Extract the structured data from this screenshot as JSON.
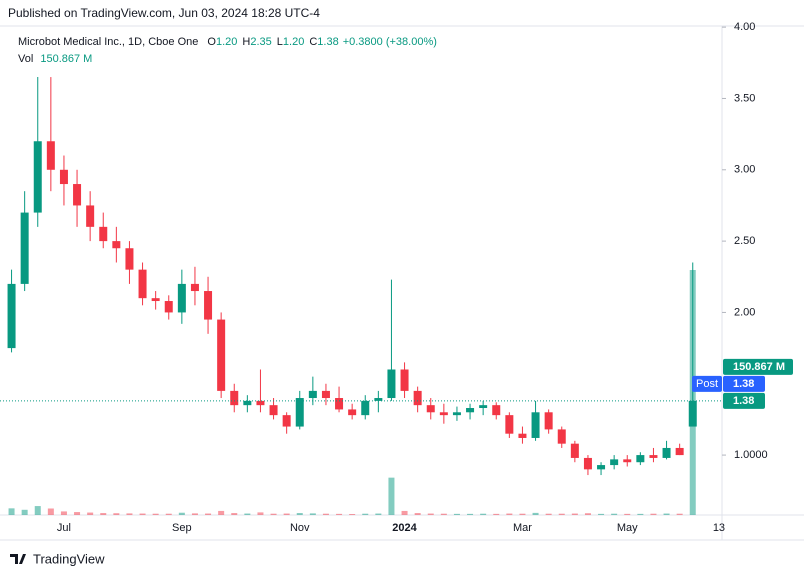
{
  "header": {
    "published": "Published on TradingView.com, Jun 03, 2024 18:28 UTC-4"
  },
  "chart_data": {
    "type": "candlestick",
    "title": "Microbot Medical Inc., 1D, Cboe One",
    "ohlc_legend": [
      {
        "key": "O",
        "value": "1.20"
      },
      {
        "key": "H",
        "value": "2.35"
      },
      {
        "key": "L",
        "value": "1.20"
      },
      {
        "key": "C",
        "value": "1.38"
      }
    ],
    "change": "+0.3800 (+38.00%)",
    "volume_label": "Vol",
    "volume_value": "150.867 M",
    "categories": [
      null,
      null,
      null,
      null,
      "Jul",
      null,
      null,
      null,
      null,
      null,
      null,
      null,
      null,
      "Sep",
      null,
      null,
      null,
      null,
      null,
      null,
      null,
      null,
      "Nov",
      null,
      null,
      null,
      null,
      null,
      null,
      null,
      "2024",
      null,
      null,
      null,
      null,
      null,
      null,
      null,
      null,
      "Mar",
      null,
      null,
      null,
      null,
      null,
      null,
      null,
      "May",
      null,
      null,
      null,
      null,
      null,
      null,
      "13"
    ],
    "open": [
      1.75,
      2.2,
      2.7,
      3.2,
      3.0,
      2.9,
      2.75,
      2.6,
      2.5,
      2.45,
      2.3,
      2.1,
      2.08,
      2.0,
      2.2,
      2.15,
      1.95,
      1.45,
      1.35,
      1.38,
      1.35,
      1.28,
      1.2,
      1.4,
      1.45,
      1.4,
      1.32,
      1.28,
      1.38,
      1.4,
      1.6,
      1.45,
      1.35,
      1.3,
      1.28,
      1.3,
      1.33,
      1.35,
      1.28,
      1.15,
      1.12,
      1.3,
      1.18,
      1.08,
      0.98,
      0.9,
      0.93,
      0.97,
      0.95,
      1.0,
      0.98,
      1.05,
      1.2,
      null,
      null
    ],
    "high": [
      2.3,
      2.85,
      3.65,
      3.65,
      3.1,
      3.0,
      2.85,
      2.7,
      2.6,
      2.5,
      2.35,
      2.15,
      2.12,
      2.3,
      2.32,
      2.25,
      2.0,
      1.5,
      1.42,
      1.6,
      1.4,
      1.3,
      1.45,
      1.55,
      1.5,
      1.48,
      1.36,
      1.42,
      1.45,
      2.23,
      1.65,
      1.48,
      1.4,
      1.36,
      1.34,
      1.36,
      1.38,
      1.37,
      1.3,
      1.2,
      1.38,
      1.32,
      1.2,
      1.1,
      1.0,
      0.95,
      1.0,
      1.0,
      1.02,
      1.05,
      1.1,
      1.08,
      2.35,
      null,
      null
    ],
    "low": [
      1.72,
      2.15,
      2.6,
      2.85,
      2.75,
      2.6,
      2.5,
      2.45,
      2.35,
      2.2,
      2.05,
      2.02,
      1.95,
      1.92,
      2.05,
      1.85,
      1.4,
      1.3,
      1.3,
      1.3,
      1.25,
      1.15,
      1.18,
      1.35,
      1.35,
      1.3,
      1.25,
      1.25,
      1.3,
      1.38,
      1.4,
      1.3,
      1.25,
      1.22,
      1.24,
      1.25,
      1.28,
      1.25,
      1.12,
      1.08,
      1.1,
      1.15,
      1.05,
      0.95,
      0.86,
      0.86,
      0.9,
      0.92,
      0.93,
      0.95,
      0.97,
      1.0,
      1.2,
      null,
      null
    ],
    "close": [
      2.2,
      2.7,
      3.2,
      3.0,
      2.9,
      2.75,
      2.6,
      2.5,
      2.45,
      2.3,
      2.1,
      2.08,
      2.0,
      2.2,
      2.15,
      1.95,
      1.45,
      1.35,
      1.38,
      1.35,
      1.28,
      1.2,
      1.4,
      1.45,
      1.4,
      1.32,
      1.28,
      1.38,
      1.4,
      1.6,
      1.45,
      1.35,
      1.3,
      1.28,
      1.3,
      1.33,
      1.35,
      1.28,
      1.15,
      1.12,
      1.3,
      1.18,
      1.08,
      0.98,
      0.9,
      0.93,
      0.97,
      0.95,
      1.0,
      0.98,
      1.05,
      1.0,
      1.38,
      null,
      null
    ],
    "volume": [
      4.1,
      3.2,
      5.5,
      4.0,
      2.2,
      1.8,
      1.5,
      1.2,
      1.1,
      1.0,
      0.9,
      0.8,
      0.8,
      1.4,
      1.0,
      0.9,
      2.5,
      1.2,
      0.9,
      1.6,
      0.8,
      0.9,
      1.2,
      1.0,
      0.8,
      0.7,
      0.6,
      0.8,
      0.9,
      23.0,
      2.5,
      1.2,
      0.9,
      0.8,
      0.7,
      0.7,
      0.8,
      0.7,
      0.9,
      0.8,
      1.3,
      0.8,
      0.8,
      0.9,
      1.1,
      0.7,
      0.8,
      0.7,
      0.7,
      0.8,
      0.9,
      0.8,
      150.867,
      null,
      null
    ],
    "up_color": "#089981",
    "down_color": "#f23645",
    "ylim": [
      0.58,
      4.05
    ],
    "yticks": [
      {
        "value": 4,
        "label": "4.00"
      },
      {
        "value": 3.5,
        "label": "3.50"
      },
      {
        "value": 3,
        "label": "3.00"
      },
      {
        "value": 2.5,
        "label": "2.50"
      },
      {
        "value": 2,
        "label": "2.00"
      },
      {
        "value": 1,
        "label": "1.0000"
      }
    ],
    "grid": false,
    "post_label": "Post",
    "post_price": {
      "value": 1.38,
      "label": "1.38"
    },
    "last_price": {
      "value": 1.38,
      "label": "1.38"
    }
  },
  "footer": {
    "brand": "TradingView"
  }
}
